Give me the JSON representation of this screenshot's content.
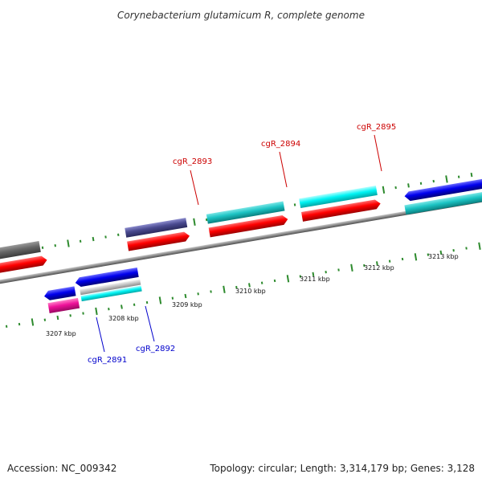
{
  "title": "Corynebacterium glutamicum R, complete genome",
  "footer": {
    "accession": "Accession: NC_009342",
    "summary": "Topology: circular; Length: 3,314,179 bp; Genes: 3,128"
  },
  "scale": {
    "ticks": [
      {
        "label": "3207 kbp"
      },
      {
        "label": "3208 kbp"
      },
      {
        "label": "3209 kbp"
      },
      {
        "label": "3210 kbp"
      },
      {
        "label": "3211 kbp"
      },
      {
        "label": "3212 kbp"
      },
      {
        "label": "3213 kbp"
      }
    ]
  },
  "genes": {
    "labeled": [
      {
        "label": "cgR_2891",
        "color": "#0000cc"
      },
      {
        "label": "cgR_2892",
        "color": "#0000cc"
      },
      {
        "label": "cgR_2893",
        "color": "#cc0000"
      },
      {
        "label": "cgR_2894",
        "color": "#cc0000"
      },
      {
        "label": "cgR_2895",
        "color": "#cc0000"
      }
    ]
  },
  "colors": {
    "backbone": "#808080",
    "tick_marks": "#2e8b2e",
    "forward_label": "#cc0000",
    "reverse_label": "#0000cc",
    "feature_palette": [
      "#ff0000",
      "#0000ee",
      "#00cccc",
      "#00eeee",
      "#ee1199",
      "#555599",
      "#666666",
      "#bbbbbb"
    ]
  }
}
